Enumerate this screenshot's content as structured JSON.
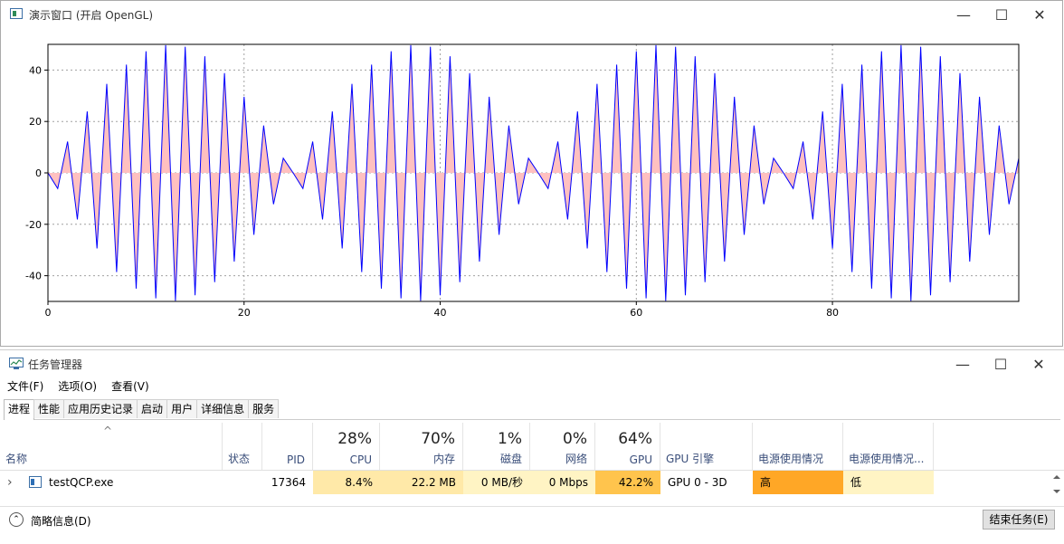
{
  "plot_window": {
    "title": "演示窗口 (开启 OpenGL)",
    "minimize_glyph": "—",
    "maximize_glyph": "☐",
    "close_glyph": "✕"
  },
  "chart_data": {
    "type": "line",
    "title": "",
    "xlabel": "",
    "ylabel": "",
    "xlim": [
      0,
      99
    ],
    "ylim": [
      -50,
      50
    ],
    "x_ticks": [
      "0",
      "20",
      "40",
      "60",
      "80"
    ],
    "y_ticks": [
      "40",
      "20",
      "0",
      "-20",
      "-40"
    ],
    "grid": true,
    "line_color": "#0000ff",
    "fill_color": "#ffc0c0",
    "series": [
      {
        "x": [
          0,
          1,
          2,
          3,
          4,
          5,
          6,
          7,
          8,
          9,
          10,
          11,
          12,
          13,
          14,
          15,
          16,
          17,
          18,
          19,
          20,
          21,
          22,
          23,
          24,
          25,
          26,
          27,
          28,
          29,
          30,
          31,
          32,
          33,
          34,
          35,
          36,
          37,
          38,
          39,
          40,
          41,
          42,
          43,
          44,
          45,
          46,
          47,
          48,
          49,
          50,
          51,
          52,
          53,
          54,
          55,
          56,
          57,
          58,
          59,
          60,
          61,
          62,
          63,
          64,
          65,
          66,
          67,
          68,
          69,
          70,
          71,
          72,
          73,
          74,
          75,
          76,
          77,
          78,
          79,
          80,
          81,
          82,
          83,
          84,
          85,
          86,
          87,
          88,
          89,
          90,
          91,
          92,
          93,
          94,
          95,
          96,
          97,
          98,
          99
        ],
        "y": [
          0,
          -6.1,
          12.2,
          -18.1,
          23.9,
          -29.4,
          34.6,
          -38.6,
          42.1,
          -45,
          47.3,
          -48.8,
          49.7,
          -49.8,
          49.1,
          -47.6,
          45.4,
          -42.5,
          38.8,
          -34.5,
          29.6,
          -24.1,
          18.4,
          -12.2,
          5.7,
          0,
          -6.1,
          12.2,
          -18.1,
          23.9,
          -29.4,
          34.6,
          -38.6,
          42.1,
          -45,
          47.3,
          -48.8,
          49.7,
          -49.8,
          49.1,
          -47.6,
          45.4,
          -42.5,
          38.8,
          -34.5,
          29.6,
          -24.1,
          18.4,
          -12.2,
          5.7,
          0,
          -6.1,
          12.2,
          -18.1,
          23.9,
          -29.4,
          34.6,
          -38.6,
          42.1,
          -45,
          47.3,
          -48.8,
          49.7,
          -49.8,
          49.1,
          -47.6,
          45.4,
          -42.5,
          38.8,
          -34.5,
          29.6,
          -24.1,
          18.4,
          -12.2,
          5.7,
          0,
          -6.1,
          12.2,
          -18.1,
          23.9,
          -29.4,
          34.6,
          -38.6,
          42.1,
          -45,
          47.3,
          -48.8,
          49.7,
          -49.8,
          49.1,
          -47.6,
          45.4,
          -42.5,
          38.8,
          -34.5,
          29.6,
          -24.1,
          18.4,
          -12.2,
          5.7
        ]
      }
    ]
  },
  "task_manager": {
    "title": "任务管理器",
    "menu": [
      "文件(F)",
      "选项(O)",
      "查看(V)"
    ],
    "tabs": [
      "进程",
      "性能",
      "应用历史记录",
      "启动",
      "用户",
      "详细信息",
      "服务"
    ],
    "sort_arrow": "^",
    "columns": {
      "name": "名称",
      "status": "状态",
      "pid": "PID",
      "cpu": {
        "pct": "28%",
        "label": "CPU"
      },
      "mem": {
        "pct": "70%",
        "label": "内存"
      },
      "disk": {
        "pct": "1%",
        "label": "磁盘"
      },
      "net": {
        "pct": "0%",
        "label": "网络"
      },
      "gpu": {
        "pct": "64%",
        "label": "GPU"
      },
      "gpu_engine": "GPU 引擎",
      "power": "电源使用情况",
      "power_trend": "电源使用情况..."
    },
    "row": {
      "expand": "›",
      "name": "testQCP.exe",
      "status": "",
      "pid": "17364",
      "cpu": "8.4%",
      "mem": "22.2 MB",
      "disk": "0 MB/秒",
      "net": "0 Mbps",
      "gpu": "42.2%",
      "gpu_engine": "GPU 0 - 3D",
      "power": "高",
      "power_trend": "低"
    },
    "colors": {
      "heat_light": "#fff4c4",
      "heat_mid": "#ffe9a8",
      "heat_gpu": "#ffc44d",
      "power_high": "#ffa726",
      "power_low": "#fff4c4"
    },
    "footer": {
      "brief": "简略信息(D)",
      "end_task": "结束任务(E)"
    }
  }
}
